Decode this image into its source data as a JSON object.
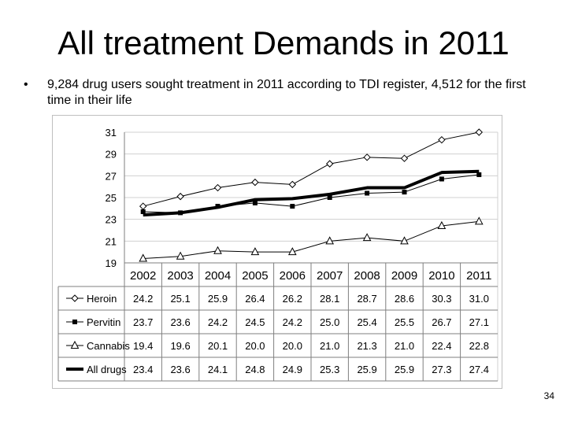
{
  "slide": {
    "title": "All treatment Demands in 2011",
    "bullet_marker": "•",
    "bullet_text": "9,284 drug users sought treatment in 2011 according to TDI register, 4,512 for the first time in their life",
    "page_number": "34"
  },
  "chart_data": {
    "type": "line",
    "title": "",
    "xlabel": "",
    "ylabel": "",
    "categories": [
      "2002",
      "2003",
      "2004",
      "2005",
      "2006",
      "2007",
      "2008",
      "2009",
      "2010",
      "2011"
    ],
    "ylim": [
      19,
      31
    ],
    "yticks": [
      "19",
      "21",
      "23",
      "25",
      "27",
      "29",
      "31"
    ],
    "grid": true,
    "legend": "data table below chart",
    "series": [
      {
        "name": "Heroin",
        "marker": "diamond",
        "values": [
          24.2,
          25.1,
          25.9,
          26.4,
          26.2,
          28.1,
          28.7,
          28.6,
          30.3,
          31.0
        ],
        "labels": [
          "24.2",
          "25.1",
          "25.9",
          "26.4",
          "26.2",
          "28.1",
          "28.7",
          "28.6",
          "30.3",
          "31.0"
        ]
      },
      {
        "name": "Pervitin",
        "marker": "square",
        "values": [
          23.7,
          23.6,
          24.2,
          24.5,
          24.2,
          25.0,
          25.4,
          25.5,
          26.7,
          27.1
        ],
        "labels": [
          "23.7",
          "23.6",
          "24.2",
          "24.5",
          "24.2",
          "25.0",
          "25.4",
          "25.5",
          "26.7",
          "27.1"
        ]
      },
      {
        "name": "Cannabis",
        "marker": "triangle",
        "values": [
          19.4,
          19.6,
          20.1,
          20.0,
          20.0,
          21.0,
          21.3,
          21.0,
          22.4,
          22.8
        ],
        "labels": [
          "19.4",
          "19.6",
          "20.1",
          "20.0",
          "20.0",
          "21.0",
          "21.3",
          "21.0",
          "22.4",
          "22.8"
        ]
      },
      {
        "name": "All drugs",
        "marker": "none",
        "values": [
          23.4,
          23.6,
          24.1,
          24.8,
          24.9,
          25.3,
          25.9,
          25.9,
          27.3,
          27.4
        ],
        "labels": [
          "23.4",
          "23.6",
          "24.1",
          "24.8",
          "24.9",
          "25.3",
          "25.9",
          "25.9",
          "27.3",
          "27.4"
        ]
      }
    ]
  }
}
